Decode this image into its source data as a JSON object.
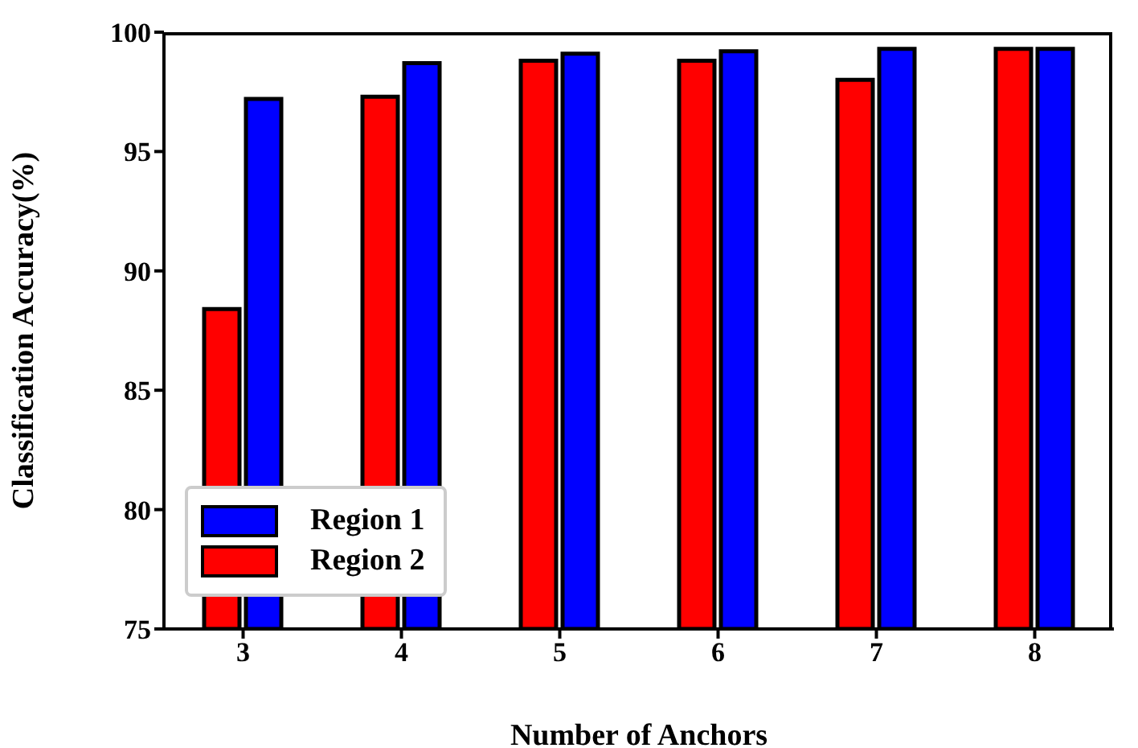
{
  "chart_data": {
    "type": "bar",
    "xlabel": "Number of Anchors",
    "ylabel": "Classification Accuracy(%)",
    "categories": [
      "3",
      "4",
      "5",
      "6",
      "7",
      "8"
    ],
    "series": [
      {
        "name": "Region 1",
        "color": "#0000ff",
        "values": [
          97.2,
          98.7,
          99.1,
          99.2,
          99.3,
          99.3
        ]
      },
      {
        "name": "Region 2",
        "color": "#ff0000",
        "values": [
          88.4,
          97.3,
          98.8,
          98.8,
          98.0,
          99.3
        ]
      }
    ],
    "ylim": [
      75,
      100
    ],
    "yticks": [
      75,
      80,
      85,
      90,
      95,
      100
    ],
    "grid": false,
    "legend": "bottom left"
  }
}
